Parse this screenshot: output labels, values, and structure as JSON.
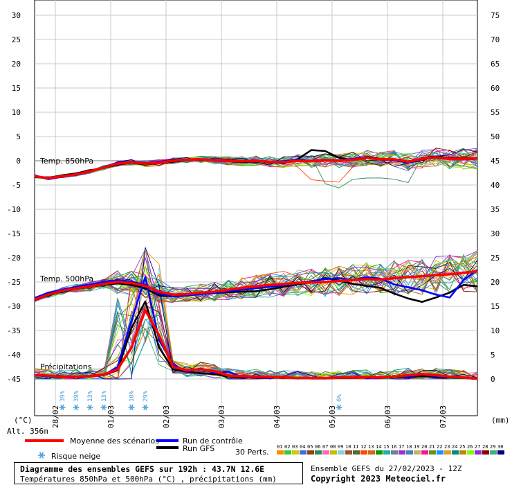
{
  "chart_data": {
    "type": "line",
    "title": "Diagramme des ensembles GEFS sur 192h : 43.7N 12.6E",
    "subtitle": "Températures 850hPa et 500hPa (°C) , précipitations (mm)",
    "left_axis": {
      "ticks": [
        30,
        25,
        20,
        15,
        10,
        5,
        0,
        -5,
        -10,
        -15,
        -20,
        -25,
        -30,
        -35,
        -40,
        -45
      ],
      "unit_label": "(°C)",
      "range": [
        -45,
        30
      ]
    },
    "right_axis": {
      "ticks": [
        75,
        70,
        65,
        60,
        55,
        50,
        45,
        40,
        35,
        30,
        25,
        20,
        15,
        10,
        5,
        0
      ],
      "unit_label": "(mm)",
      "range": [
        0,
        75
      ]
    },
    "altitude_label": "Alt. 356m",
    "x_range_hours": [
      0,
      192
    ],
    "date_labels": [
      {
        "label": "28/02",
        "hour": 9
      },
      {
        "label": "01/03",
        "hour": 33
      },
      {
        "label": "02/03",
        "hour": 57
      },
      {
        "label": "03/03",
        "hour": 81
      },
      {
        "label": "04/03",
        "hour": 105
      },
      {
        "label": "05/03",
        "hour": 129
      },
      {
        "label": "06/03",
        "hour": 153
      },
      {
        "label": "07/03",
        "hour": 177
      }
    ],
    "annotations": [
      "Temp. 850hPa",
      "Temp. 500hPa",
      "Précipitations"
    ],
    "snow_risk": [
      {
        "hour": 12,
        "label": "39%"
      },
      {
        "hour": 18,
        "label": "39%"
      },
      {
        "hour": 24,
        "label": "13%"
      },
      {
        "hour": 30,
        "label": "13%"
      },
      {
        "hour": 42,
        "label": "10%"
      },
      {
        "hour": 48,
        "label": "29%"
      },
      {
        "hour": 132,
        "label": "6%"
      }
    ],
    "hours": [
      0,
      6,
      12,
      18,
      24,
      30,
      36,
      42,
      48,
      54,
      60,
      66,
      72,
      78,
      84,
      90,
      96,
      102,
      108,
      114,
      120,
      126,
      132,
      138,
      144,
      150,
      156,
      162,
      168,
      174,
      180,
      186,
      192
    ],
    "series": [
      {
        "name": "Moyenne des scénarios",
        "group": "t850",
        "color": "#ff0000",
        "values": [
          -3.2,
          -3.6,
          -3.2,
          -2.8,
          -2.2,
          -1.4,
          -0.6,
          -0.3,
          -0.6,
          -0.4,
          0,
          0.2,
          0.3,
          0.1,
          0,
          -0.1,
          0,
          -0.2,
          -0.3,
          0,
          -0.1,
          0.1,
          0,
          0.2,
          0.6,
          0.3,
          0.3,
          -0.2,
          0.4,
          0.7,
          0.4,
          0.4,
          0.5
        ]
      },
      {
        "name": "Run de contrôle",
        "group": "t850",
        "color": "#0000ff",
        "values": [
          -3.0,
          -3.8,
          -3.3,
          -2.9,
          -2.3,
          -1.3,
          -0.4,
          -0.2,
          -0.5,
          -0.2,
          0.1,
          0.3,
          0.2,
          0,
          -0.1,
          0,
          0.1,
          -0.2,
          -0.1,
          0.2,
          0,
          0.2,
          0.1,
          0.4,
          0.7,
          0.2,
          0.1,
          -0.4,
          0.3,
          0.6,
          0.3,
          0.3,
          0.4
        ]
      },
      {
        "name": "Run GFS",
        "group": "t850",
        "color": "#000000",
        "values": [
          -3.4,
          -3.5,
          -3.0,
          -2.6,
          -2.0,
          -1.5,
          -0.8,
          -0.4,
          -0.8,
          -0.5,
          -0.2,
          0.1,
          0.2,
          0.2,
          -0.1,
          -0.3,
          -0.1,
          -0.3,
          -0.5,
          0.3,
          2.2,
          2.0,
          0.6,
          0.1,
          0.8,
          0.4,
          0.2,
          -0.3,
          0.5,
          0.9,
          0.6,
          0.5,
          0.6
        ]
      },
      {
        "name": "Moyenne des scénarios",
        "group": "t500",
        "color": "#ff0000",
        "values": [
          -28.6,
          -27.6,
          -26.8,
          -26.3,
          -25.9,
          -25.4,
          -25.0,
          -25.2,
          -25.8,
          -27.0,
          -27.6,
          -27.5,
          -27.2,
          -27.0,
          -26.6,
          -26.2,
          -25.9,
          -25.6,
          -25.4,
          -25.2,
          -25.1,
          -25.0,
          -24.8,
          -24.6,
          -24.4,
          -24.5,
          -24.2,
          -24.0,
          -23.8,
          -23.6,
          -23.4,
          -23.1,
          -22.8
        ]
      },
      {
        "name": "Run de contrôle",
        "group": "t500",
        "color": "#0000ff",
        "values": [
          -28.3,
          -27.2,
          -26.6,
          -26.0,
          -25.5,
          -25.0,
          -24.6,
          -24.9,
          -25.6,
          -27.4,
          -28.0,
          -27.8,
          -27.5,
          -27.3,
          -26.9,
          -26.6,
          -26.3,
          -26.0,
          -25.7,
          -25.3,
          -24.8,
          -24.4,
          -24.2,
          -24.6,
          -24.0,
          -24.3,
          -25.5,
          -26.1,
          -26.7,
          -27.6,
          -28.2,
          -24.6,
          -22.5
        ]
      },
      {
        "name": "Run GFS",
        "group": "t500",
        "color": "#000000",
        "values": [
          -28.5,
          -27.8,
          -26.9,
          -26.4,
          -26.0,
          -25.6,
          -25.3,
          -25.6,
          -26.3,
          -27.8,
          -28.0,
          -27.7,
          -27.4,
          -27.3,
          -27.1,
          -27.0,
          -26.9,
          -26.5,
          -26.0,
          -25.5,
          -25.0,
          -24.2,
          -24.7,
          -25.4,
          -25.8,
          -26.2,
          -27.4,
          -28.4,
          -29.1,
          -28.2,
          -27.2,
          -25.6,
          -25.9
        ]
      },
      {
        "name": "Moyenne des scénarios",
        "group": "precip",
        "color": "#ff0000",
        "values": [
          0.8,
          0.7,
          0.4,
          0.5,
          0.6,
          0.9,
          2.0,
          6.5,
          14.2,
          9.0,
          2.5,
          1.8,
          2.0,
          1.6,
          0.7,
          0.6,
          0.5,
          0.4,
          0.3,
          0.2,
          0.2,
          0.2,
          0.3,
          0.3,
          0.4,
          0.3,
          0.5,
          0.8,
          1.0,
          0.8,
          0.5,
          0.3,
          0.1
        ]
      },
      {
        "name": "Run de contrôle",
        "group": "precip",
        "color": "#0000ff",
        "values": [
          0.8,
          0.5,
          0.3,
          0.4,
          0.5,
          0.8,
          2.5,
          12.0,
          21.0,
          8.0,
          3.0,
          1.5,
          2.2,
          1.2,
          1.5,
          0.4,
          0.3,
          0.2,
          0.3,
          0.1,
          0.2,
          0.1,
          0.4,
          0.2,
          0.3,
          0.2,
          0.6,
          0.5,
          0.9,
          0.6,
          0.4,
          0.2,
          0
        ]
      },
      {
        "name": "Run GFS",
        "group": "precip",
        "color": "#000000",
        "values": [
          0.8,
          0.6,
          0.3,
          0.4,
          0.6,
          0.8,
          1.8,
          10.5,
          16.0,
          6.5,
          2.0,
          1.5,
          1.2,
          1.0,
          0.5,
          0.3,
          0.4,
          0.3,
          0.2,
          0.2,
          0.1,
          0.1,
          0.2,
          0.2,
          0.3,
          0.2,
          0.4,
          0.4,
          0.6,
          0.4,
          0.3,
          0.2,
          0
        ]
      }
    ],
    "members_note": "30 Perts.",
    "member_codes": [
      "01",
      "02",
      "03",
      "04",
      "05",
      "06",
      "07",
      "08",
      "09",
      "10",
      "11",
      "12",
      "13",
      "14",
      "15",
      "16",
      "17",
      "18",
      "19",
      "20",
      "21",
      "22",
      "23",
      "24",
      "25",
      "26",
      "27",
      "28",
      "29",
      "30"
    ],
    "member_colors": [
      "#ff8c00",
      "#32cd32",
      "#cccc00",
      "#4169e1",
      "#8b4513",
      "#2e8b57",
      "#ff69b4",
      "#c0c000",
      "#87ceeb",
      "#a0522d",
      "#556b2f",
      "#ff4500",
      "#d2691e",
      "#00a000",
      "#20b2aa",
      "#708090",
      "#9932cc",
      "#4682b4",
      "#bdb76b",
      "#ff1493",
      "#6b8e23",
      "#1e90ff",
      "#daa520",
      "#008b8b",
      "#b8860b",
      "#7fff00",
      "#8a2be2",
      "#8b0000",
      "#3cb371",
      "#000080"
    ]
  },
  "legend": {
    "mean": "Moyenne des scénarios",
    "control": "Run de contrôle",
    "gfs": "Run GFS",
    "snow": "Risque neige",
    "perts": "30 Perts."
  },
  "footer": {
    "title": "Diagramme des ensembles GEFS sur 192h : 43.7N 12.6E",
    "subtitle": "Températures 850hPa et 500hPa (°C) , précipitations (mm)",
    "run": "Ensemble GEFS du 27/02/2023 - 12Z",
    "copyright": "Copyright 2023 Meteociel.fr"
  }
}
